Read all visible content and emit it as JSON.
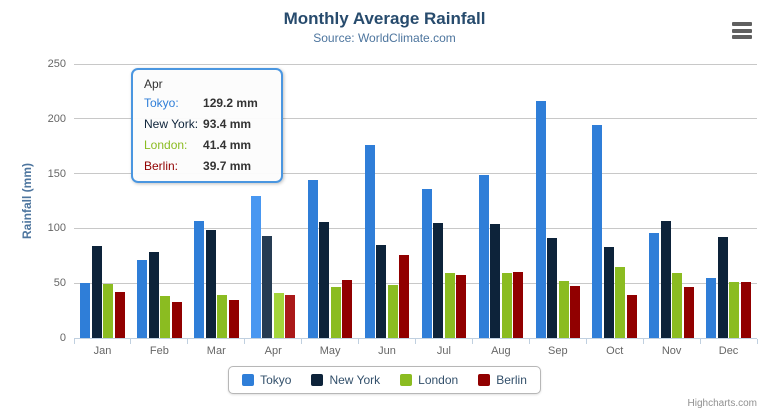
{
  "chart_data": {
    "type": "bar",
    "title": "Monthly Average Rainfall",
    "subtitle": "Source: WorldClimate.com",
    "xlabel": "",
    "ylabel": "Rainfall (mm)",
    "ylim": [
      0,
      250
    ],
    "yticks": [
      0,
      50,
      100,
      150,
      200,
      250
    ],
    "grid": true,
    "legend_position": "bottom",
    "categories": [
      "Jan",
      "Feb",
      "Mar",
      "Apr",
      "May",
      "Jun",
      "Jul",
      "Aug",
      "Sep",
      "Oct",
      "Nov",
      "Dec"
    ],
    "series": [
      {
        "name": "Tokyo",
        "color": "#2f7ed8",
        "hover_color": "#4897f1",
        "values": [
          49.9,
          71.5,
          106.4,
          129.2,
          144.0,
          176.0,
          135.6,
          148.5,
          216.4,
          194.1,
          95.6,
          54.4
        ]
      },
      {
        "name": "New York",
        "color": "#0d233a",
        "hover_color": "#263c53",
        "values": [
          83.6,
          78.8,
          98.5,
          93.4,
          106.0,
          84.5,
          105.0,
          104.3,
          91.2,
          83.5,
          106.6,
          92.3
        ]
      },
      {
        "name": "London",
        "color": "#8bbc21",
        "hover_color": "#a4d53a",
        "values": [
          48.9,
          38.8,
          39.3,
          41.4,
          47.0,
          48.3,
          59.0,
          59.6,
          52.4,
          65.2,
          59.3,
          51.2
        ]
      },
      {
        "name": "Berlin",
        "color": "#910000",
        "hover_color": "#aa1919",
        "values": [
          42.4,
          33.2,
          34.5,
          39.7,
          52.6,
          75.5,
          57.4,
          60.4,
          47.6,
          39.1,
          46.8,
          51.1
        ]
      }
    ],
    "hovered_category": "Apr",
    "hovered_category_index": 3
  },
  "tooltip": {
    "header": "Apr",
    "rows": [
      {
        "label": "Tokyo:",
        "value": "129.2 mm",
        "color": "#2f7ed8"
      },
      {
        "label": "New York:",
        "value": "93.4 mm",
        "color": "#0d233a"
      },
      {
        "label": "London:",
        "value": "41.4 mm",
        "color": "#8bbc21"
      },
      {
        "label": "Berlin:",
        "value": "39.7 mm",
        "color": "#910000"
      }
    ]
  },
  "credits": {
    "label": "Highcharts.com"
  },
  "icons": {
    "export_menu": "hamburger-menu-icon"
  },
  "colors": {
    "title": "#274b6d",
    "subtitle": "#4d759e",
    "axis_line": "#c0d0e0",
    "gridline": "#c8c8c8",
    "axis_text": "#666666",
    "tooltip_border": "#4a96e0"
  }
}
